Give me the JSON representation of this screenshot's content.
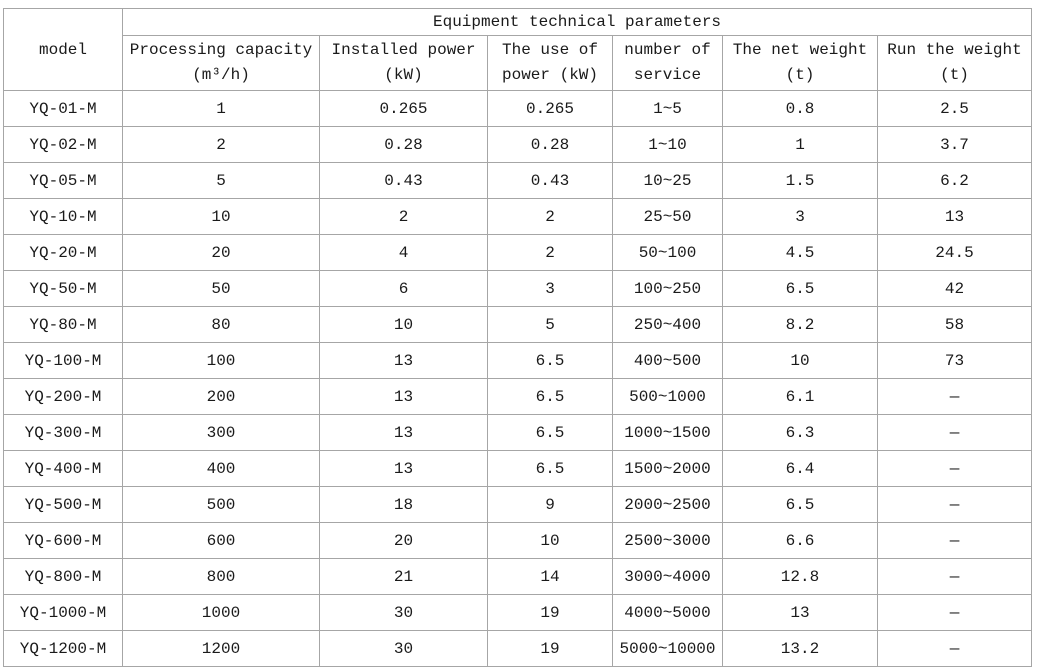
{
  "table": {
    "title": "Equipment technical parameters",
    "columns": [
      {
        "line1": "model",
        "line2": ""
      },
      {
        "line1": "Processing capacity",
        "line2": "(m³/h)"
      },
      {
        "line1": "Installed power",
        "line2": "(kW)"
      },
      {
        "line1": "The use of",
        "line2": "power (kW)"
      },
      {
        "line1": "number of",
        "line2": "service"
      },
      {
        "line1": "The net weight",
        "line2": "(t)"
      },
      {
        "line1": "Run the weight",
        "line2": "(t)"
      }
    ],
    "rows": [
      [
        "YQ-01-M",
        "1",
        "0.265",
        "0.265",
        "1~5",
        "0.8",
        "2.5"
      ],
      [
        "YQ-02-M",
        "2",
        "0.28",
        "0.28",
        "1~10",
        "1",
        "3.7"
      ],
      [
        "YQ-05-M",
        "5",
        "0.43",
        "0.43",
        "10~25",
        "1.5",
        "6.2"
      ],
      [
        "YQ-10-M",
        "10",
        "2",
        "2",
        "25~50",
        "3",
        "13"
      ],
      [
        "YQ-20-M",
        "20",
        "4",
        "2",
        "50~100",
        "4.5",
        "24.5"
      ],
      [
        "YQ-50-M",
        "50",
        "6",
        "3",
        "100~250",
        "6.5",
        "42"
      ],
      [
        "YQ-80-M",
        "80",
        "10",
        "5",
        "250~400",
        "8.2",
        "58"
      ],
      [
        "YQ-100-M",
        "100",
        "13",
        "6.5",
        "400~500",
        "10",
        "73"
      ],
      [
        "YQ-200-M",
        "200",
        "13",
        "6.5",
        "500~1000",
        "6.1",
        "—"
      ],
      [
        "YQ-300-M",
        "300",
        "13",
        "6.5",
        "1000~1500",
        "6.3",
        "—"
      ],
      [
        "YQ-400-M",
        "400",
        "13",
        "6.5",
        "1500~2000",
        "6.4",
        "—"
      ],
      [
        "YQ-500-M",
        "500",
        "18",
        "9",
        "2000~2500",
        "6.5",
        "—"
      ],
      [
        "YQ-600-M",
        "600",
        "20",
        "10",
        "2500~3000",
        "6.6",
        "—"
      ],
      [
        "YQ-800-M",
        "800",
        "21",
        "14",
        "3000~4000",
        "12.8",
        "—"
      ],
      [
        "YQ-1000-M",
        "1000",
        "30",
        "19",
        "4000~5000",
        "13",
        "—"
      ],
      [
        "YQ-1200-M",
        "1200",
        "30",
        "19",
        "5000~10000",
        "13.2",
        "—"
      ]
    ],
    "colors": {
      "border": "#a6a6a6",
      "text": "#1a1a1a",
      "background": "#ffffff"
    }
  }
}
